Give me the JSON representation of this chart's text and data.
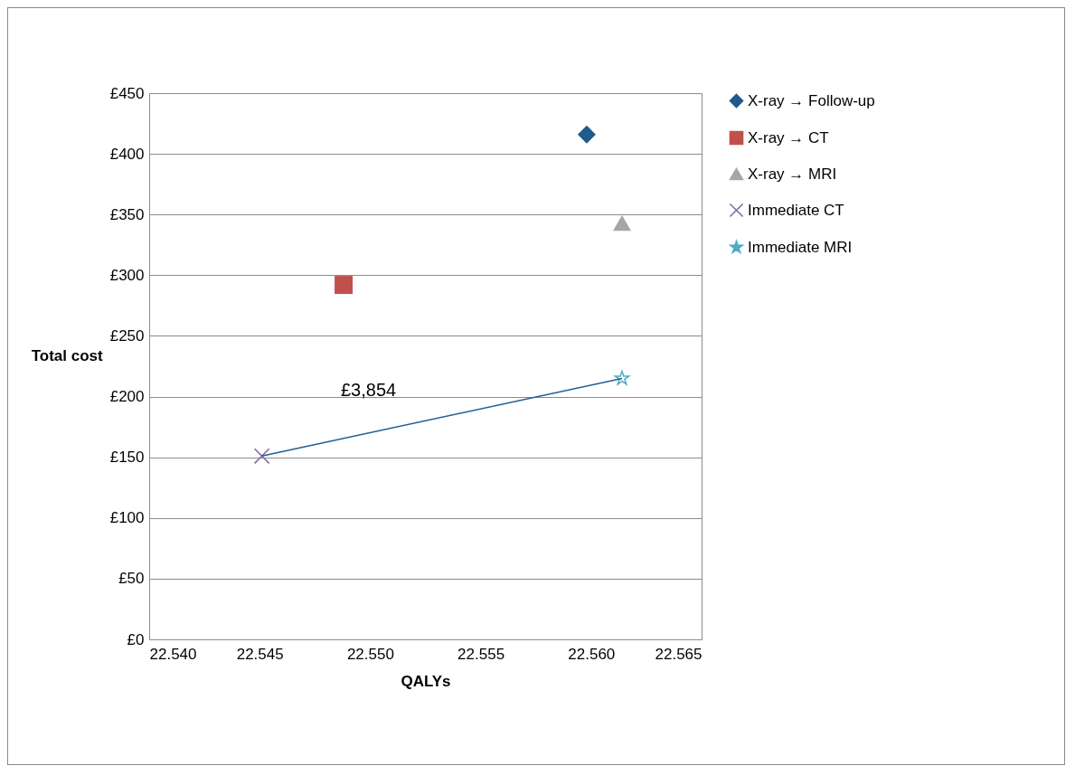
{
  "chart_data": {
    "type": "scatter",
    "xlabel": "QALYs",
    "ylabel": "Total cost",
    "xlim": [
      22.54,
      22.565
    ],
    "xticks": [
      {
        "value": 22.54,
        "label": "22.540"
      },
      {
        "value": 22.545,
        "label": "22.545"
      },
      {
        "value": 22.55,
        "label": "22.550"
      },
      {
        "value": 22.555,
        "label": "22.555"
      },
      {
        "value": 22.56,
        "label": "22.560"
      },
      {
        "value": 22.565,
        "label": "22.565"
      }
    ],
    "ylim": [
      0,
      450
    ],
    "yticks": [
      {
        "value": 0,
        "label": "£0"
      },
      {
        "value": 50,
        "label": "£50"
      },
      {
        "value": 100,
        "label": "£100"
      },
      {
        "value": 150,
        "label": "£150"
      },
      {
        "value": 200,
        "label": "£200"
      },
      {
        "value": 250,
        "label": "£250"
      },
      {
        "value": 300,
        "label": "£300"
      },
      {
        "value": 350,
        "label": "£350"
      },
      {
        "value": 400,
        "label": "£400"
      },
      {
        "value": 450,
        "label": "£450"
      }
    ],
    "grid": "y",
    "legend": "right",
    "series": [
      {
        "name": "X-ray → Follow-up",
        "color": "#215a8c",
        "marker": "diamond",
        "x": [
          22.5598
        ],
        "values": [
          416
        ]
      },
      {
        "name": "X-ray → CT",
        "color": "#c0504d",
        "marker": "square",
        "x": [
          22.5488
        ],
        "values": [
          292
        ]
      },
      {
        "name": "X-ray → MRI",
        "color": "#a6a6a6",
        "marker": "triangle",
        "x": [
          22.5614
        ],
        "values": [
          343
        ]
      },
      {
        "name": "Immediate CT",
        "color": "#8064a2",
        "marker": "cross",
        "x": [
          22.5451
        ],
        "values": [
          151
        ]
      },
      {
        "name": "Immediate MRI",
        "color": "#4bacc6",
        "marker": "star",
        "x": [
          22.5614
        ],
        "values": [
          215
        ]
      },
      {
        "type": "line",
        "color": "#1f5f99",
        "marker": "none",
        "x": [
          22.5451,
          22.5614
        ],
        "values": [
          151,
          215
        ]
      }
    ],
    "annotations": [
      "£3,854"
    ]
  }
}
